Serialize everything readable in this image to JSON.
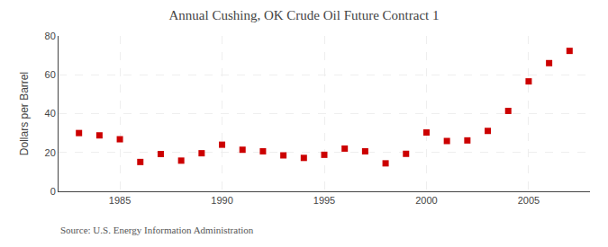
{
  "chart_data": {
    "type": "scatter",
    "title": "Annual Cushing, OK Crude Oil Future Contract 1",
    "ylabel": "Dollars per Barrel",
    "annotations": [
      "Source: U.S. Energy Information Administration"
    ],
    "x": [
      1983,
      1984,
      1985,
      1986,
      1987,
      1988,
      1989,
      1990,
      1991,
      1992,
      1993,
      1994,
      1995,
      1996,
      1997,
      1998,
      1999,
      2000,
      2001,
      2002,
      2003,
      2004,
      2005,
      2006,
      2007
    ],
    "values": [
      30.0,
      28.8,
      26.8,
      15.1,
      19.2,
      15.8,
      19.6,
      24.0,
      21.4,
      20.6,
      18.5,
      17.2,
      18.8,
      22.0,
      20.6,
      14.4,
      19.3,
      30.3,
      25.9,
      26.2,
      31.1,
      41.4,
      56.6,
      66.0,
      72.3
    ],
    "color": "#cc0000",
    "marker": "square",
    "xlim": [
      1982,
      2008
    ],
    "xticks": [
      1985,
      1990,
      1995,
      2000,
      2005
    ],
    "ylim": [
      0,
      80
    ],
    "yticks": [
      0,
      20,
      40,
      60,
      80
    ],
    "grid": true
  }
}
